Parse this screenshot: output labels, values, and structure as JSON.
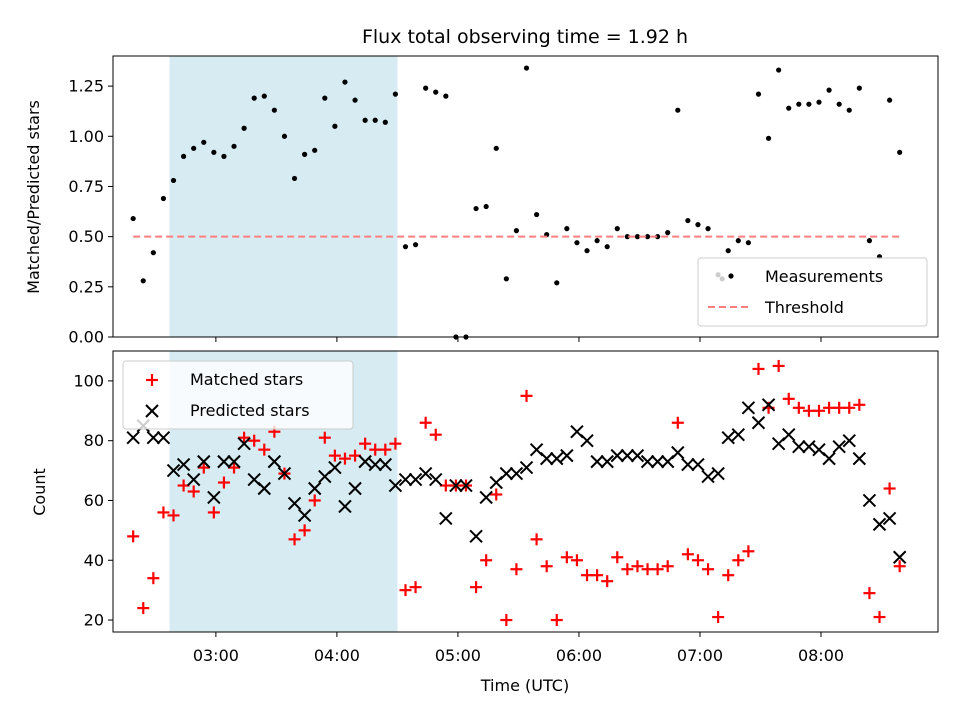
{
  "chart_data": [
    {
      "type": "scatter",
      "title": "Flux total observing time = 1.92 h",
      "xlabel": "",
      "ylabel": "Matched/Predicted stars",
      "xlim": [
        "02:09",
        "08:58"
      ],
      "ylim": [
        0,
        1.4
      ],
      "yticks": [
        0,
        0.25,
        0.5,
        0.75,
        1.0,
        1.25
      ],
      "ytick_labels": [
        "0.00",
        "0.25",
        "0.50",
        "0.75",
        "1.00",
        "1.25"
      ],
      "xticks": [
        "03:00",
        "04:00",
        "05:00",
        "06:00",
        "07:00",
        "08:00"
      ],
      "grid": false,
      "legend_position": "lower-right",
      "shaded_span": [
        "02:37",
        "04:30"
      ],
      "series": [
        {
          "name": "Measurements",
          "marker": "dot",
          "color": "#000000",
          "x": [
            "02:19",
            "02:24",
            "02:29",
            "02:34",
            "02:39",
            "02:44",
            "02:49",
            "02:54",
            "02:59",
            "03:04",
            "03:09",
            "03:14",
            "03:19",
            "03:24",
            "03:29",
            "03:34",
            "03:39",
            "03:44",
            "03:49",
            "03:54",
            "03:59",
            "04:04",
            "04:09",
            "04:14",
            "04:19",
            "04:24",
            "04:29",
            "04:34",
            "04:39",
            "04:44",
            "04:49",
            "04:54",
            "04:59",
            "05:04",
            "05:09",
            "05:14",
            "05:19",
            "05:24",
            "05:29",
            "05:34",
            "05:39",
            "05:44",
            "05:49",
            "05:54",
            "05:59",
            "06:04",
            "06:09",
            "06:14",
            "06:19",
            "06:24",
            "06:29",
            "06:34",
            "06:39",
            "06:44",
            "06:49",
            "06:54",
            "06:59",
            "07:04",
            "07:09",
            "07:11",
            "07:14",
            "07:19",
            "07:24",
            "07:29",
            "07:34",
            "07:39",
            "07:44",
            "07:49",
            "07:54",
            "07:59",
            "08:04",
            "08:09",
            "08:14",
            "08:19",
            "08:24",
            "08:29",
            "08:34",
            "08:39"
          ],
          "y": [
            0.59,
            0.28,
            0.42,
            0.69,
            0.78,
            0.9,
            0.94,
            0.97,
            0.92,
            0.9,
            0.95,
            1.04,
            1.19,
            1.2,
            1.13,
            1.0,
            0.79,
            0.91,
            0.93,
            1.19,
            1.05,
            1.27,
            1.18,
            1.08,
            1.08,
            1.07,
            1.21,
            0.45,
            0.46,
            1.24,
            1.22,
            1.2,
            0.0,
            0.0,
            0.64,
            0.65,
            0.94,
            0.29,
            0.53,
            1.34,
            0.61,
            0.51,
            0.27,
            0.54,
            0.47,
            0.43,
            0.48,
            0.45,
            0.54,
            0.5,
            0.5,
            0.5,
            0.5,
            0.52,
            1.13,
            0.58,
            0.56,
            0.54,
            0.31,
            0.29,
            0.43,
            0.48,
            0.47,
            1.21,
            0.99,
            1.33,
            1.14,
            1.16,
            1.16,
            1.17,
            1.23,
            1.16,
            1.13,
            1.24,
            0.48,
            0.4,
            1.18,
            0.92
          ]
        },
        {
          "name": "Threshold",
          "style": "dashed",
          "color": "#ff7f7f",
          "x": [
            "02:19",
            "08:39"
          ],
          "y": [
            0.5,
            0.5
          ]
        }
      ]
    },
    {
      "type": "scatter",
      "title": "",
      "xlabel": "Time (UTC)",
      "ylabel": "Count",
      "xlim": [
        "02:09",
        "08:58"
      ],
      "ylim": [
        16,
        110
      ],
      "yticks": [
        20,
        40,
        60,
        80,
        100
      ],
      "xticks": [
        "03:00",
        "04:00",
        "05:00",
        "06:00",
        "07:00",
        "08:00"
      ],
      "grid": false,
      "legend_position": "upper-left",
      "shaded_span": [
        "02:37",
        "04:30"
      ],
      "series": [
        {
          "name": "Matched stars",
          "marker": "plus",
          "color": "#ff0000",
          "x": [
            "02:19",
            "02:24",
            "02:29",
            "02:34",
            "02:39",
            "02:44",
            "02:49",
            "02:54",
            "02:59",
            "03:04",
            "03:09",
            "03:14",
            "03:19",
            "03:24",
            "03:29",
            "03:34",
            "03:39",
            "03:44",
            "03:49",
            "03:54",
            "03:59",
            "04:04",
            "04:09",
            "04:14",
            "04:19",
            "04:24",
            "04:29",
            "04:34",
            "04:39",
            "04:44",
            "04:49",
            "04:54",
            "04:59",
            "05:04",
            "05:09",
            "05:14",
            "05:19",
            "05:24",
            "05:29",
            "05:34",
            "05:39",
            "05:44",
            "05:49",
            "05:54",
            "05:59",
            "06:04",
            "06:09",
            "06:14",
            "06:19",
            "06:24",
            "06:29",
            "06:34",
            "06:39",
            "06:44",
            "06:49",
            "06:54",
            "06:59",
            "07:04",
            "07:09",
            "07:14",
            "07:19",
            "07:24",
            "07:29",
            "07:34",
            "07:39",
            "07:44",
            "07:49",
            "07:54",
            "07:59",
            "08:04",
            "08:09",
            "08:14",
            "08:19",
            "08:24",
            "08:29",
            "08:34",
            "08:39"
          ],
          "y": [
            48,
            24,
            34,
            56,
            55,
            65,
            63,
            71,
            56,
            66,
            71,
            81,
            80,
            77,
            83,
            69,
            47,
            50,
            60,
            81,
            75,
            74,
            75,
            79,
            77,
            77,
            79,
            30,
            31,
            86,
            82,
            65,
            65,
            65,
            31,
            40,
            62,
            20,
            37,
            95,
            47,
            38,
            20,
            41,
            40,
            35,
            35,
            33,
            41,
            37,
            38,
            37,
            37,
            38,
            86,
            42,
            40,
            37,
            21,
            35,
            40,
            43,
            104,
            91,
            105,
            94,
            91,
            90,
            90,
            91,
            91,
            91,
            92,
            29,
            21,
            64,
            38
          ]
        },
        {
          "name": "Predicted stars",
          "marker": "x",
          "color": "#000000",
          "x": [
            "02:19",
            "02:24",
            "02:29",
            "02:34",
            "02:39",
            "02:44",
            "02:49",
            "02:54",
            "02:59",
            "03:04",
            "03:09",
            "03:14",
            "03:19",
            "03:24",
            "03:29",
            "03:34",
            "03:39",
            "03:44",
            "03:49",
            "03:54",
            "03:59",
            "04:04",
            "04:09",
            "04:14",
            "04:19",
            "04:24",
            "04:29",
            "04:34",
            "04:39",
            "04:44",
            "04:49",
            "04:54",
            "04:59",
            "05:04",
            "05:09",
            "05:14",
            "05:19",
            "05:24",
            "05:29",
            "05:34",
            "05:39",
            "05:44",
            "05:49",
            "05:54",
            "05:59",
            "06:04",
            "06:09",
            "06:14",
            "06:19",
            "06:24",
            "06:29",
            "06:34",
            "06:39",
            "06:44",
            "06:49",
            "06:54",
            "06:59",
            "07:04",
            "07:09",
            "07:14",
            "07:19",
            "07:24",
            "07:29",
            "07:34",
            "07:39",
            "07:44",
            "07:49",
            "07:54",
            "07:59",
            "08:04",
            "08:09",
            "08:14",
            "08:19",
            "08:24",
            "08:29",
            "08:34",
            "08:39"
          ],
          "y": [
            81,
            85,
            81,
            81,
            70,
            72,
            67,
            73,
            61,
            73,
            73,
            79,
            67,
            64,
            73,
            69,
            59,
            55,
            64,
            68,
            71,
            58,
            64,
            73,
            72,
            72,
            65,
            67,
            67,
            69,
            67,
            54,
            65,
            65,
            48,
            61,
            66,
            69,
            69,
            71,
            77,
            74,
            74,
            75,
            83,
            80,
            73,
            73,
            75,
            75,
            75,
            73,
            73,
            73,
            76,
            72,
            72,
            68,
            69,
            81,
            82,
            91,
            86,
            92,
            79,
            82,
            78,
            78,
            77,
            74,
            78,
            80,
            74,
            60,
            52,
            54,
            41
          ]
        }
      ]
    }
  ]
}
